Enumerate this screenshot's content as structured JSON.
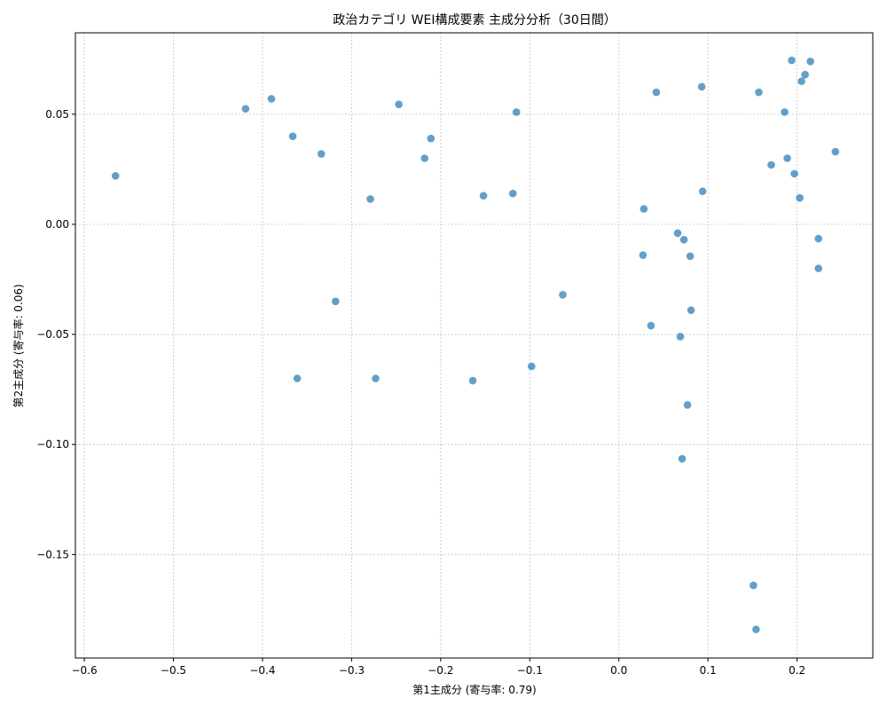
{
  "chart_data": {
    "type": "scatter",
    "title": "政治カテゴリ WEI構成要素 主成分分析（30日間）",
    "xlabel": "第1主成分 (寄与率: 0.79)",
    "ylabel": "第2主成分 (寄与率: 0.06)",
    "xlim": [
      -0.61,
      0.285
    ],
    "ylim": [
      -0.197,
      0.087
    ],
    "xticks": [
      -0.6,
      -0.5,
      -0.4,
      -0.3,
      -0.2,
      -0.1,
      0.0,
      0.1,
      0.2
    ],
    "xtick_labels": [
      "−0.6",
      "−0.5",
      "−0.4",
      "−0.3",
      "−0.2",
      "−0.1",
      "0.0",
      "0.1",
      "0.2"
    ],
    "yticks": [
      0.05,
      0.0,
      -0.05,
      -0.1,
      -0.15
    ],
    "ytick_labels": [
      "0.05",
      "0.00",
      "−0.05",
      "−0.10",
      "−0.15"
    ],
    "grid": true,
    "marker_color": "#1f77b4",
    "points": [
      {
        "x": -0.565,
        "y": 0.022
      },
      {
        "x": -0.419,
        "y": 0.0525
      },
      {
        "x": -0.39,
        "y": 0.057
      },
      {
        "x": -0.366,
        "y": 0.04
      },
      {
        "x": -0.334,
        "y": 0.032
      },
      {
        "x": -0.279,
        "y": 0.0115
      },
      {
        "x": -0.247,
        "y": 0.0545
      },
      {
        "x": -0.218,
        "y": 0.03
      },
      {
        "x": -0.211,
        "y": 0.039
      },
      {
        "x": -0.152,
        "y": 0.013
      },
      {
        "x": -0.119,
        "y": 0.014
      },
      {
        "x": -0.115,
        "y": 0.051
      },
      {
        "x": -0.318,
        "y": -0.035
      },
      {
        "x": -0.361,
        "y": -0.07
      },
      {
        "x": -0.273,
        "y": -0.07
      },
      {
        "x": -0.164,
        "y": -0.071
      },
      {
        "x": -0.098,
        "y": -0.0645
      },
      {
        "x": -0.063,
        "y": -0.032
      },
      {
        "x": 0.042,
        "y": 0.06
      },
      {
        "x": 0.093,
        "y": 0.0625
      },
      {
        "x": 0.157,
        "y": 0.06
      },
      {
        "x": 0.186,
        "y": 0.051
      },
      {
        "x": 0.194,
        "y": 0.0745
      },
      {
        "x": 0.215,
        "y": 0.074
      },
      {
        "x": 0.209,
        "y": 0.068
      },
      {
        "x": 0.205,
        "y": 0.065
      },
      {
        "x": 0.171,
        "y": 0.027
      },
      {
        "x": 0.189,
        "y": 0.03
      },
      {
        "x": 0.197,
        "y": 0.023
      },
      {
        "x": 0.243,
        "y": 0.033
      },
      {
        "x": 0.094,
        "y": 0.015
      },
      {
        "x": 0.203,
        "y": 0.012
      },
      {
        "x": 0.028,
        "y": 0.007
      },
      {
        "x": 0.066,
        "y": -0.004
      },
      {
        "x": 0.073,
        "y": -0.007
      },
      {
        "x": 0.027,
        "y": -0.014
      },
      {
        "x": 0.08,
        "y": -0.0145
      },
      {
        "x": 0.224,
        "y": -0.0065
      },
      {
        "x": 0.224,
        "y": -0.02
      },
      {
        "x": 0.081,
        "y": -0.039
      },
      {
        "x": 0.036,
        "y": -0.046
      },
      {
        "x": 0.069,
        "y": -0.051
      },
      {
        "x": 0.077,
        "y": -0.082
      },
      {
        "x": 0.071,
        "y": -0.1065
      },
      {
        "x": 0.151,
        "y": -0.164
      },
      {
        "x": 0.154,
        "y": -0.184
      }
    ]
  }
}
